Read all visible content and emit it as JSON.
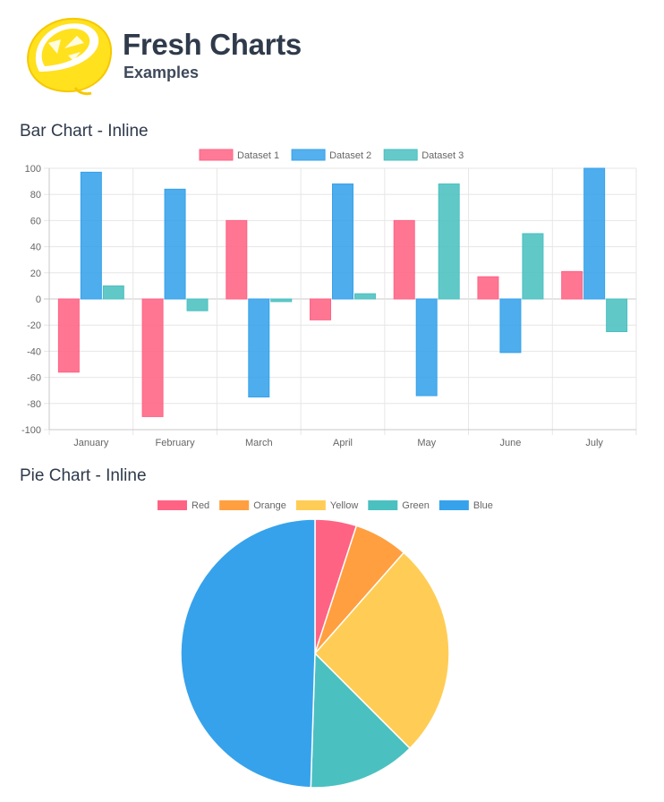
{
  "header": {
    "title": "Fresh Charts",
    "subtitle": "Examples",
    "logo_icon": "lemon-icon"
  },
  "sections": [
    {
      "title": "Bar Chart - Inline"
    },
    {
      "title": "Pie Chart - Inline"
    }
  ],
  "chart_data": [
    {
      "type": "bar",
      "categories": [
        "January",
        "February",
        "March",
        "April",
        "May",
        "June",
        "July"
      ],
      "series": [
        {
          "name": "Dataset 1",
          "color": "#ff6384",
          "values": [
            -56,
            -90,
            60,
            -16,
            60,
            17,
            21
          ]
        },
        {
          "name": "Dataset 2",
          "color": "#36a2eb",
          "values": [
            97,
            84,
            -75,
            88,
            -74,
            -41,
            100
          ]
        },
        {
          "name": "Dataset 3",
          "color": "#4bc0c0",
          "values": [
            10,
            -9,
            -2,
            4,
            88,
            50,
            -25
          ]
        }
      ],
      "ylim": [
        -100,
        100
      ],
      "yticks": [
        -100,
        -80,
        -60,
        -40,
        -20,
        0,
        20,
        40,
        60,
        80,
        100
      ],
      "grid": true,
      "legend": "top"
    },
    {
      "type": "pie",
      "labels": [
        "Red",
        "Orange",
        "Yellow",
        "Green",
        "Blue"
      ],
      "values": [
        5,
        6.5,
        26,
        13,
        49.5
      ],
      "colors": [
        "#ff6384",
        "#ff9f40",
        "#ffcd56",
        "#4bc0c0",
        "#36a2eb"
      ],
      "legend": "top"
    }
  ]
}
